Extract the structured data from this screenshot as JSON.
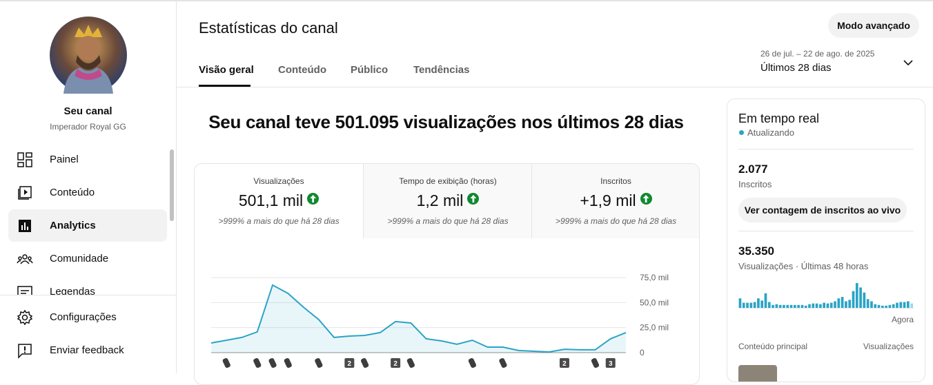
{
  "sidebar": {
    "channel_title": "Seu canal",
    "channel_name": "Imperador Royal GG",
    "nav": [
      "Painel",
      "Conteúdo",
      "Analytics",
      "Comunidade",
      "Legendas"
    ],
    "footer": [
      "Configurações",
      "Enviar feedback"
    ]
  },
  "header": {
    "title": "Estatísticas do canal",
    "button": "Modo avançado",
    "tabs": [
      "Visão geral",
      "Conteúdo",
      "Público",
      "Tendências"
    ],
    "date_range": "26 de jul. – 22 de ago. de 2025",
    "period": "Últimos 28 dias"
  },
  "main": {
    "headline": "Seu canal teve 501.095 visualizações nos últimos 28 dias",
    "metrics": [
      {
        "label": "Visualizações",
        "value": "501,1 mil",
        "note": ">999% a mais do que há 28 dias"
      },
      {
        "label": "Tempo de exibição (horas)",
        "value": "1,2 mil",
        "note": ">999% a mais do que há 28 dias"
      },
      {
        "label": "Inscritos",
        "value": "+1,9 mil",
        "note": ">999% a mais do que há 28 dias"
      }
    ]
  },
  "line_chart": {
    "type": "line",
    "color": "#2ba3c6",
    "values": [
      9600,
      12400,
      15200,
      20700,
      67500,
      59200,
      45500,
      33000,
      15200,
      16500,
      17200,
      20000,
      31000,
      29600,
      13800,
      11700,
      8300,
      12400,
      5500,
      5500,
      2100,
      1400,
      700,
      3400,
      2800,
      2800,
      13800,
      20000
    ],
    "ylim": [
      0,
      75000
    ],
    "yticks": [
      0,
      {
        "value": 25000,
        "label": "25,0 mil"
      },
      {
        "value": 50000,
        "label": "50,0 mil"
      },
      {
        "value": 75000,
        "label": "75,0 mil"
      }
    ],
    "grid": true,
    "badges": [
      "2",
      "2",
      "2",
      "3"
    ]
  },
  "realtime": {
    "title": "Em tempo real",
    "status": "Atualizando",
    "subscribers": "2.077",
    "subscribers_label": "Inscritos",
    "button": "Ver contagem de inscritos ao vivo",
    "views": "35.350",
    "views_label": "Visualizações · Últimas 48 horas",
    "bar_chart": {
      "type": "bar",
      "color": "#2ba3c6",
      "values": [
        1040,
        560,
        560,
        560,
        640,
        1040,
        800,
        1600,
        640,
        320,
        400,
        320,
        320,
        320,
        320,
        320,
        320,
        320,
        240,
        400,
        480,
        480,
        400,
        560,
        480,
        560,
        720,
        1040,
        1200,
        720,
        880,
        1840,
        2720,
        2240,
        1680,
        960,
        720,
        400,
        320,
        240,
        240,
        320,
        400,
        560,
        640,
        640,
        720,
        480
      ],
      "x_label": "Agora"
    },
    "top_content": "Conteúdo principal",
    "top_content_metric": "Visualizações"
  }
}
